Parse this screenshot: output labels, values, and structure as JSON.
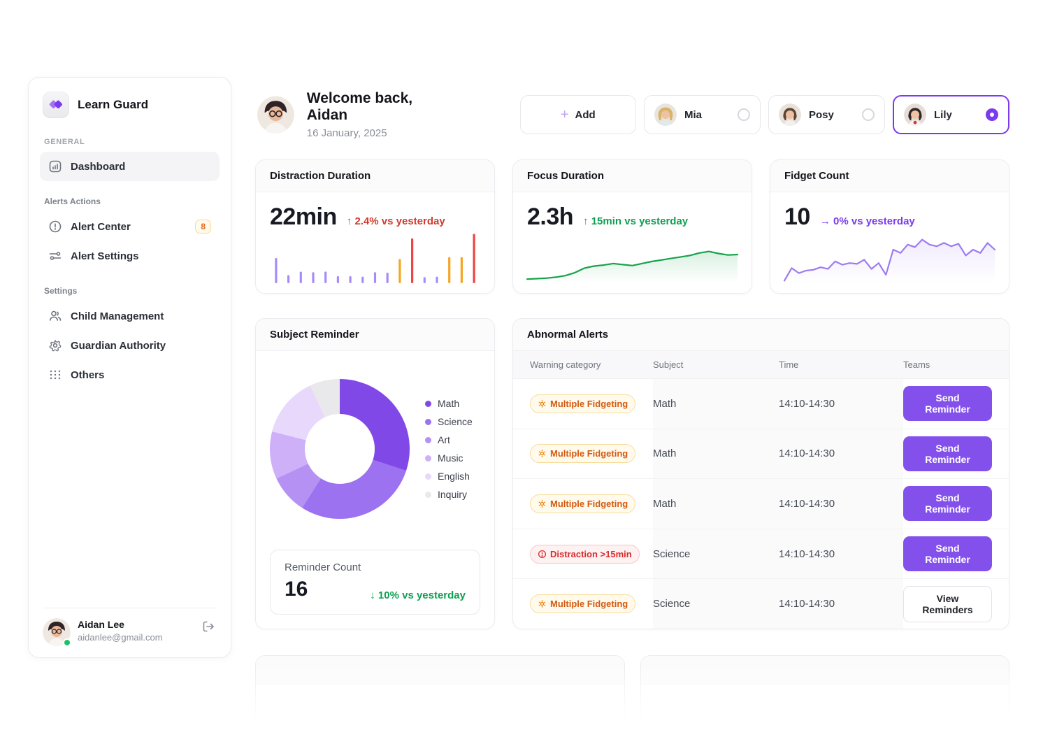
{
  "app": {
    "name": "Learn Guard"
  },
  "icons": {
    "plus": "+"
  },
  "sidebar": {
    "sections": [
      {
        "label": "GENERAL",
        "items": [
          {
            "label": "Dashboard",
            "icon": "dashboard-icon",
            "active": true
          }
        ]
      },
      {
        "label": "Alerts Actions",
        "items": [
          {
            "label": "Alert Center",
            "icon": "alert-circle-icon",
            "badge": "8"
          },
          {
            "label": "Alert Settings",
            "icon": "sliders-icon"
          }
        ]
      },
      {
        "label": "Settings",
        "items": [
          {
            "label": "Child Management",
            "icon": "users-icon"
          },
          {
            "label": "Guardian Authority",
            "icon": "gear-icon"
          },
          {
            "label": "Others",
            "icon": "grid-dots-icon"
          }
        ]
      }
    ],
    "user": {
      "name": "Aidan Lee",
      "email": "aidanlee@gmail.com",
      "status": "online"
    }
  },
  "header": {
    "welcome": "Welcome back, Aidan",
    "date": "16 January, 2025",
    "add_label": "Add",
    "children": [
      {
        "name": "Mia",
        "selected": false
      },
      {
        "name": "Posy",
        "selected": false
      },
      {
        "name": "Lily",
        "selected": true
      }
    ]
  },
  "stats": [
    {
      "title": "Distraction Duration",
      "value": "22min",
      "arrow": "↑",
      "delta": "2.4% vs yesterday",
      "delta_color": "#d23b2e"
    },
    {
      "title": "Focus Duration",
      "value": "2.3h",
      "arrow": "↑",
      "delta": "15min vs yesterday",
      "delta_color": "#0e9f52"
    },
    {
      "title": "Fidget Count",
      "value": "10",
      "arrow": "→",
      "delta": "0% vs yesterday",
      "delta_color": "#7c3aed"
    }
  ],
  "chart_data": [
    {
      "id": "distraction_bars",
      "type": "bar",
      "title": "Distraction Duration sparkline",
      "values": [
        50,
        16,
        23,
        22,
        23,
        14,
        14,
        13,
        22,
        21,
        48,
        89,
        12,
        13,
        52,
        52,
        98
      ],
      "bar_colors": [
        "purple",
        "purple",
        "purple",
        "purple",
        "purple",
        "purple",
        "purple",
        "purple",
        "purple",
        "purple",
        "orange",
        "red",
        "purple",
        "purple",
        "orange",
        "orange",
        "red"
      ],
      "palette": {
        "purple": "#a78bfa",
        "orange": "#f5a623",
        "red": "#ef4444"
      },
      "ylim": [
        0,
        100
      ],
      "grid": false
    },
    {
      "id": "focus_line",
      "type": "area",
      "title": "Focus Duration trend",
      "values": [
        8,
        9,
        10,
        12,
        15,
        21,
        30,
        34,
        36,
        39,
        37,
        35,
        39,
        43,
        46,
        49,
        52,
        55,
        60,
        63,
        59,
        56,
        57
      ],
      "line_color": "#16a34a",
      "fill_from": "rgba(22,163,74,0.16)",
      "fill_to": "rgba(22,163,74,0)",
      "ylim": [
        0,
        100
      ],
      "grid": false
    },
    {
      "id": "fidget_line",
      "type": "area",
      "title": "Fidget Count trend",
      "values": [
        3,
        18,
        12,
        15,
        16,
        19,
        17,
        26,
        22,
        24,
        23,
        28,
        17,
        24,
        10,
        40,
        36,
        46,
        43,
        52,
        46,
        44,
        48,
        44,
        47,
        33,
        40,
        36,
        48,
        40
      ],
      "line_color": "#9d7bf0",
      "fill_from": "rgba(139,92,246,0.12)",
      "fill_to": "rgba(139,92,246,0)",
      "ylim": [
        0,
        60
      ],
      "grid": false
    },
    {
      "id": "subject_donut",
      "type": "pie",
      "title": "Subject Reminder",
      "donut_hole": 0.5,
      "legend_position": "right",
      "segments": [
        {
          "label": "Math",
          "value": 30,
          "color": "#8148e8"
        },
        {
          "label": "Science",
          "value": 29,
          "color": "#9d72f0"
        },
        {
          "label": "Art",
          "value": 9,
          "color": "#b591f4"
        },
        {
          "label": "Music",
          "value": 11,
          "color": "#ceb0f8"
        },
        {
          "label": "English",
          "value": 14,
          "color": "#e7d8fc"
        },
        {
          "label": "Inquiry",
          "value": 7,
          "color": "#e9e9ec"
        }
      ]
    }
  ],
  "subject_reminder": {
    "title": "Subject Reminder",
    "count_label": "Reminder Count",
    "count": "16",
    "arrow": "↓",
    "delta": "10% vs yesterday"
  },
  "alerts_table": {
    "title": "Abnormal Alerts",
    "columns": [
      "Warning category",
      "Subject",
      "Time",
      "Teams"
    ],
    "rows": [
      {
        "category": "Multiple Fidgeting",
        "severity": "warning",
        "subject": "Math",
        "time": "14:10-14:30",
        "action": "Send Reminder",
        "action_type": "primary"
      },
      {
        "category": "Multiple Fidgeting",
        "severity": "warning",
        "subject": "Math",
        "time": "14:10-14:30",
        "action": "Send Reminder",
        "action_type": "primary"
      },
      {
        "category": "Multiple Fidgeting",
        "severity": "warning",
        "subject": "Math",
        "time": "14:10-14:30",
        "action": "Send Reminder",
        "action_type": "primary"
      },
      {
        "category": "Distraction >15min",
        "severity": "danger",
        "subject": "Science",
        "time": "14:10-14:30",
        "action": "Send Reminder",
        "action_type": "primary"
      },
      {
        "category": "Multiple Fidgeting",
        "severity": "warning",
        "subject": "Science",
        "time": "14:10-14:30",
        "action": "View Reminders",
        "action_type": "secondary"
      }
    ]
  }
}
